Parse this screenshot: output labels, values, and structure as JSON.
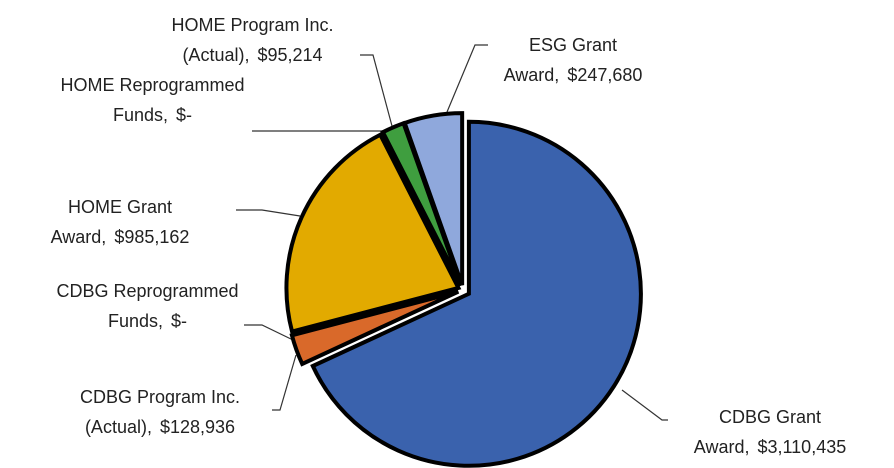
{
  "chart_data": {
    "type": "pie",
    "categories": [
      "CDBG Grant Award,",
      "CDBG Program Inc. (Actual),",
      "CDBG Reprogrammed Funds,",
      "HOME Grant Award,",
      "HOME Reprogrammed Funds,",
      "HOME Program Inc. (Actual),",
      "ESG Grant Award,"
    ],
    "values": [
      3110435,
      128936,
      0,
      985162,
      0,
      95214,
      247680
    ],
    "value_labels": [
      "$3,110,435",
      "$128,936",
      "$-",
      "$985,162",
      "$-",
      "$95,214",
      "$247,680"
    ],
    "colors": [
      "#3a62ad",
      "#d9692a",
      "#e0e0e0",
      "#e2aa00",
      "#e0e0e0",
      "#3f9e3f",
      "#8fa8dc"
    ]
  }
}
